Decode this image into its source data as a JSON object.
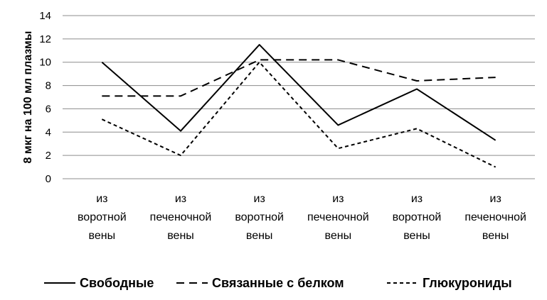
{
  "chart_data": {
    "type": "line",
    "ylabel": "8 мкг на 100 мл плазмы",
    "xlabel": "",
    "title": "",
    "ylim": [
      0,
      14
    ],
    "yticks": [
      0,
      2,
      4,
      6,
      8,
      10,
      12,
      14
    ],
    "grid": true,
    "legend_position": "bottom",
    "categories": [
      [
        "из",
        "воротной",
        "вены"
      ],
      [
        "из",
        "печеночной",
        "вены"
      ],
      [
        "из",
        "воротной",
        "вены"
      ],
      [
        "из",
        "печеночной",
        "вены"
      ],
      [
        "из",
        "воротной",
        "вены"
      ],
      [
        "из",
        "печеночной",
        "вены"
      ]
    ],
    "series": [
      {
        "name": "Свободные",
        "style": "solid",
        "color": "#000000",
        "values": [
          10.0,
          4.1,
          11.5,
          4.6,
          7.7,
          3.3
        ]
      },
      {
        "name": "Связанные с белком",
        "style": "long-dash",
        "color": "#000000",
        "values": [
          7.1,
          7.1,
          10.2,
          10.2,
          8.4,
          8.7
        ]
      },
      {
        "name": "Глюкурониды",
        "style": "short-dash",
        "color": "#000000",
        "values": [
          5.1,
          2.0,
          10.0,
          2.6,
          4.3,
          1.0
        ]
      }
    ]
  }
}
